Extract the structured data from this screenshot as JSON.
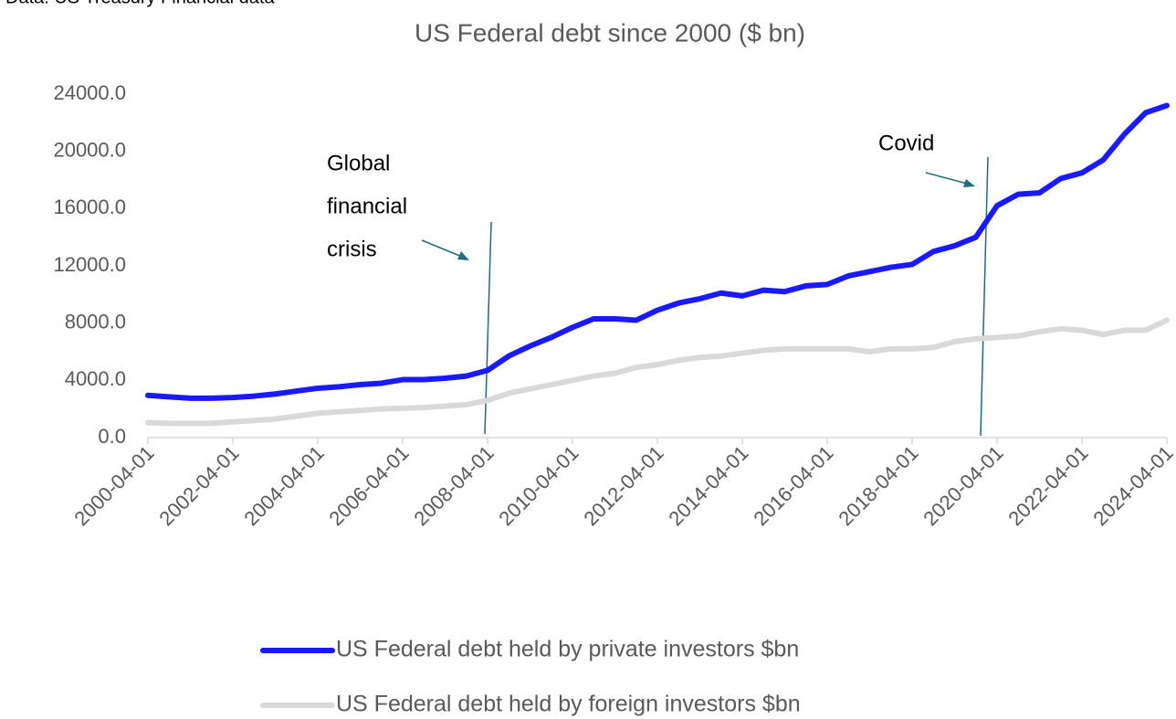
{
  "chart_data": {
    "type": "line",
    "source": "Data: US Treasury Financial data",
    "title": "US Federal debt since 2000 ($ bn)",
    "categories": [
      "2000-04-01",
      null,
      null,
      null,
      "2002-04-01",
      null,
      null,
      null,
      "2004-04-01",
      null,
      null,
      null,
      "2006-04-01",
      null,
      null,
      null,
      "2008-04-01",
      null,
      null,
      null,
      "2010-04-01",
      null,
      null,
      null,
      "2012-04-01",
      null,
      null,
      null,
      "2014-04-01",
      null,
      null,
      null,
      "2016-04-01",
      null,
      null,
      null,
      "2018-04-01",
      null,
      null,
      null,
      "2020-04-01",
      null,
      null,
      null,
      "2022-04-01",
      null,
      null,
      null,
      "2024-04-01"
    ],
    "series": [
      {
        "name": "US Federal debt held by private investors $bn",
        "color": "#1a1aff",
        "values": [
          2950,
          2850,
          2750,
          2750,
          2800,
          2900,
          3050,
          3250,
          3450,
          3550,
          3700,
          3800,
          4050,
          4050,
          4150,
          4300,
          4700,
          5700,
          6400,
          7000,
          7700,
          8300,
          8300,
          8200,
          8900,
          9400,
          9700,
          10100,
          9900,
          10300,
          10200,
          10600,
          10700,
          11300,
          11600,
          11900,
          12100,
          13000,
          13400,
          14000,
          16200,
          17000,
          17100,
          18100,
          18500,
          19400,
          21200,
          22700,
          23200
        ]
      },
      {
        "name": "US Federal debt held by foreign investors $bn",
        "color": "#d9d9d9",
        "values": [
          1050,
          1000,
          1000,
          1000,
          1100,
          1200,
          1300,
          1500,
          1700,
          1800,
          1900,
          2000,
          2050,
          2100,
          2200,
          2300,
          2600,
          3100,
          3400,
          3700,
          4000,
          4300,
          4500,
          4900,
          5100,
          5400,
          5600,
          5700,
          5900,
          6100,
          6200,
          6200,
          6200,
          6200,
          6000,
          6200,
          6200,
          6300,
          6700,
          6900,
          7000,
          7100,
          7400,
          7600,
          7500,
          7200,
          7500,
          7500,
          8200
        ]
      }
    ],
    "ylim": [
      0,
      24000
    ],
    "yticks": [
      {
        "value": 0,
        "label": "0.0"
      },
      {
        "value": 4000,
        "label": "4000.0"
      },
      {
        "value": 8000,
        "label": "8000.0"
      },
      {
        "value": 12000,
        "label": "12000.0"
      },
      {
        "value": 16000,
        "label": "16000.0"
      },
      {
        "value": 20000,
        "label": "20000.0"
      },
      {
        "value": 24000,
        "label": "24000.0"
      }
    ],
    "annotations": {
      "gfc": [
        "Global",
        "financial",
        "crisis"
      ],
      "covid": "Covid"
    }
  }
}
